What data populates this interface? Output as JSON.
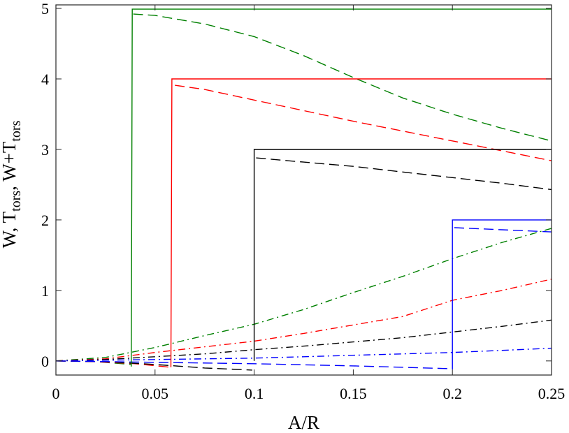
{
  "chart_data": {
    "type": "line",
    "xlabel": "A/R",
    "ylabel": {
      "parts": [
        {
          "text": "W, T",
          "sub": false
        },
        {
          "text": "tors",
          "sub": true
        },
        {
          "text": ", W+T",
          "sub": false
        },
        {
          "text": "tors",
          "sub": true
        }
      ]
    },
    "xlim": [
      0,
      0.25
    ],
    "ylim": [
      -0.2,
      5.05
    ],
    "xticks": [
      0,
      0.05,
      0.1,
      0.15,
      0.2,
      0.25
    ],
    "xtick_labels": [
      "0",
      "0.05",
      "0.1",
      "0.15",
      "0.2",
      "0.25"
    ],
    "yticks": [
      0,
      1,
      2,
      3,
      4,
      5
    ],
    "ytick_labels": [
      "0",
      "1",
      "2",
      "3",
      "4",
      "5"
    ],
    "grid": false,
    "series": [
      {
        "color": "#008000",
        "style": "dashdot",
        "points": [
          [
            0,
            0
          ],
          [
            0.025,
            0.05
          ],
          [
            0.05,
            0.19
          ],
          [
            0.075,
            0.36
          ],
          [
            0.1,
            0.52
          ],
          [
            0.125,
            0.73
          ],
          [
            0.15,
            0.97
          ],
          [
            0.175,
            1.2
          ],
          [
            0.2,
            1.45
          ],
          [
            0.225,
            1.68
          ],
          [
            0.25,
            1.88
          ]
        ]
      },
      {
        "color": "#ff0000",
        "style": "dashdot",
        "points": [
          [
            0,
            0
          ],
          [
            0.025,
            0.03
          ],
          [
            0.05,
            0.12
          ],
          [
            0.075,
            0.2
          ],
          [
            0.1,
            0.28
          ],
          [
            0.125,
            0.39
          ],
          [
            0.15,
            0.51
          ],
          [
            0.175,
            0.63
          ],
          [
            0.2,
            0.86
          ],
          [
            0.225,
            1.0
          ],
          [
            0.25,
            1.16
          ]
        ]
      },
      {
        "color": "#000000",
        "style": "dashdot",
        "points": [
          [
            0,
            0
          ],
          [
            0.025,
            0.02
          ],
          [
            0.05,
            0.06
          ],
          [
            0.075,
            0.1
          ],
          [
            0.1,
            0.16
          ],
          [
            0.125,
            0.21
          ],
          [
            0.15,
            0.27
          ],
          [
            0.175,
            0.33
          ],
          [
            0.2,
            0.41
          ],
          [
            0.225,
            0.49
          ],
          [
            0.25,
            0.58
          ]
        ]
      },
      {
        "color": "#0000ff",
        "style": "dashdot",
        "points": [
          [
            0,
            0
          ],
          [
            0.025,
            0.01
          ],
          [
            0.05,
            0.02
          ],
          [
            0.075,
            0.03
          ],
          [
            0.1,
            0.04
          ],
          [
            0.125,
            0.06
          ],
          [
            0.15,
            0.08
          ],
          [
            0.175,
            0.1
          ],
          [
            0.2,
            0.12
          ],
          [
            0.225,
            0.15
          ],
          [
            0.25,
            0.18
          ]
        ]
      },
      {
        "color": "#008000",
        "style": "dashed",
        "points": [
          [
            0,
            0
          ],
          [
            0.02,
            -0.01
          ],
          [
            0.038,
            -0.05
          ]
        ]
      },
      {
        "color": "#008000",
        "style": "dashed",
        "points": [
          [
            0.039,
            4.92
          ],
          [
            0.05,
            4.9
          ],
          [
            0.075,
            4.78
          ],
          [
            0.1,
            4.6
          ],
          [
            0.125,
            4.33
          ],
          [
            0.15,
            4.02
          ],
          [
            0.175,
            3.73
          ],
          [
            0.2,
            3.5
          ],
          [
            0.225,
            3.3
          ],
          [
            0.25,
            3.12
          ]
        ]
      },
      {
        "color": "#ff0000",
        "style": "dashed",
        "points": [
          [
            0,
            0
          ],
          [
            0.02,
            -0.01
          ],
          [
            0.04,
            -0.04
          ],
          [
            0.058,
            -0.09
          ]
        ]
      },
      {
        "color": "#ff0000",
        "style": "dashed",
        "points": [
          [
            0.06,
            3.91
          ],
          [
            0.075,
            3.85
          ],
          [
            0.1,
            3.7
          ],
          [
            0.125,
            3.55
          ],
          [
            0.15,
            3.4
          ],
          [
            0.175,
            3.26
          ],
          [
            0.2,
            3.12
          ],
          [
            0.225,
            2.98
          ],
          [
            0.25,
            2.84
          ]
        ]
      },
      {
        "color": "#000000",
        "style": "dashed",
        "points": [
          [
            0,
            0
          ],
          [
            0.025,
            -0.01
          ],
          [
            0.05,
            -0.05
          ],
          [
            0.075,
            -0.1
          ],
          [
            0.099,
            -0.13
          ]
        ]
      },
      {
        "color": "#000000",
        "style": "dashed",
        "points": [
          [
            0.101,
            2.88
          ],
          [
            0.125,
            2.82
          ],
          [
            0.15,
            2.76
          ],
          [
            0.175,
            2.68
          ],
          [
            0.2,
            2.6
          ],
          [
            0.225,
            2.52
          ],
          [
            0.25,
            2.43
          ]
        ]
      },
      {
        "color": "#0000ff",
        "style": "dashed",
        "points": [
          [
            0,
            0
          ],
          [
            0.05,
            -0.02
          ],
          [
            0.1,
            -0.04
          ],
          [
            0.15,
            -0.07
          ],
          [
            0.199,
            -0.11
          ]
        ]
      },
      {
        "color": "#0000ff",
        "style": "dashed",
        "points": [
          [
            0.201,
            1.89
          ],
          [
            0.225,
            1.86
          ],
          [
            0.25,
            1.83
          ]
        ]
      },
      {
        "color": "#008000",
        "style": "solid",
        "points": [
          [
            0.038,
            -0.08
          ],
          [
            0.0385,
            4.99
          ],
          [
            0.25,
            4.99
          ]
        ]
      },
      {
        "color": "#ff0000",
        "style": "solid",
        "points": [
          [
            0.058,
            -0.09
          ],
          [
            0.0585,
            4.0
          ],
          [
            0.25,
            4.0
          ]
        ]
      },
      {
        "color": "#000000",
        "style": "solid",
        "points": [
          [
            0.1,
            0.0
          ],
          [
            0.1,
            3.0
          ],
          [
            0.25,
            3.0
          ]
        ]
      },
      {
        "color": "#0000ff",
        "style": "solid",
        "points": [
          [
            0.2,
            -0.12
          ],
          [
            0.2,
            2.0
          ],
          [
            0.25,
            2.0
          ]
        ]
      }
    ]
  }
}
